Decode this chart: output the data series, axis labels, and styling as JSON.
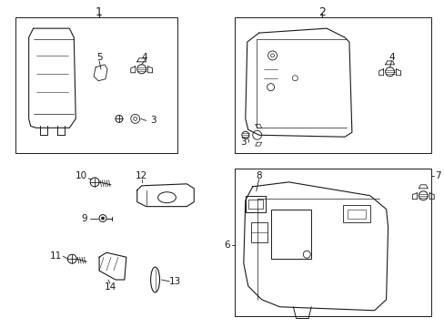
{
  "bg_color": "#ffffff",
  "line_color": "#1a1a1a",
  "fig_width": 4.89,
  "fig_height": 3.6,
  "dpi": 100
}
